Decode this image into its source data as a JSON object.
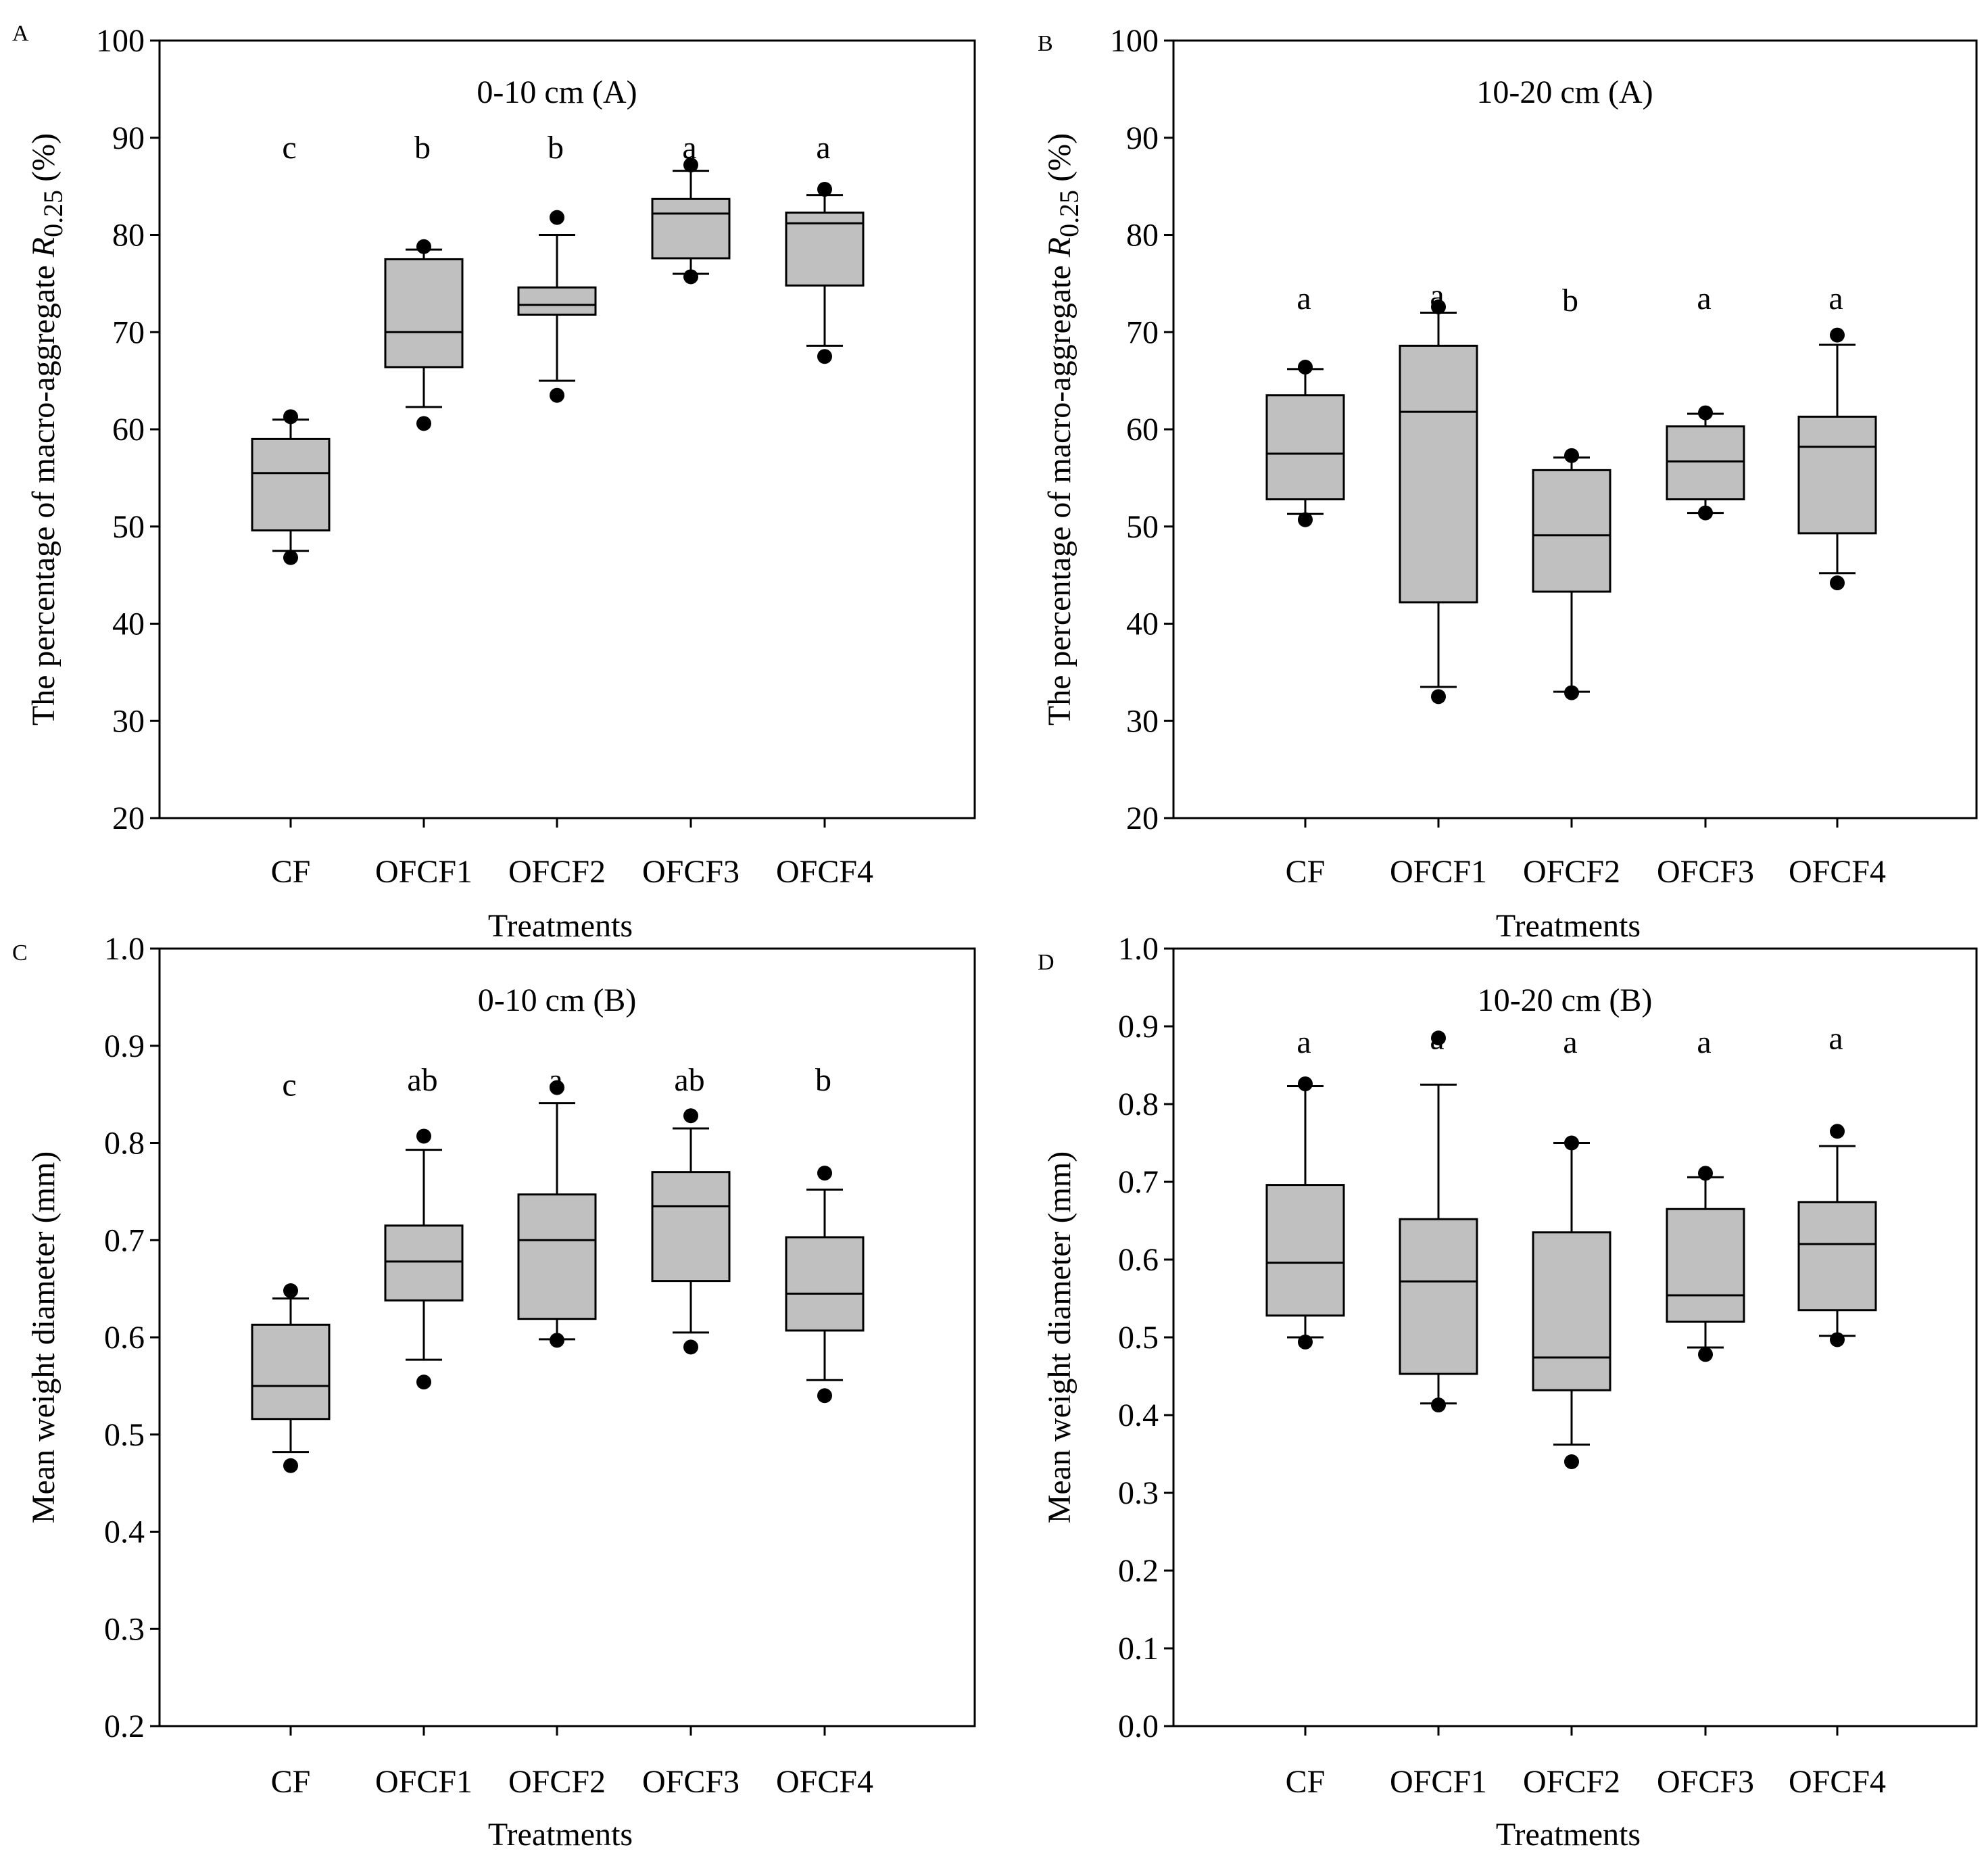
{
  "chart_data": [
    {
      "type": "box",
      "panel": "A",
      "title": "0-10 cm (A)",
      "xlabel": "Treatments",
      "ylabel": "The percentage of macro-aggregate R0.25 (%)",
      "ylabel_parts": {
        "main": "The percentage of macro-aggregate ",
        "italic": "R",
        "sub": "0.25",
        "tail": " (%)"
      },
      "ylim": [
        20,
        100
      ],
      "yticks": [
        "20",
        "30",
        "40",
        "50",
        "60",
        "70",
        "80",
        "90",
        "100"
      ],
      "categories": [
        "CF",
        "OFCF1",
        "OFCF2",
        "OFCF3",
        "OFCF4"
      ],
      "letters": [
        "c",
        "b",
        "b",
        "a",
        "a"
      ],
      "letter_y": [
        89,
        89,
        89,
        89,
        89
      ],
      "boxes": [
        {
          "whisker_low": 47.5,
          "q1": 49.6,
          "median": 55.5,
          "q3": 59.0,
          "whisker_high": 61.0,
          "outliers": [
            46.8,
            61.3
          ]
        },
        {
          "whisker_low": 62.3,
          "q1": 66.4,
          "median": 70.0,
          "q3": 77.5,
          "whisker_high": 78.5,
          "outliers": [
            60.6,
            78.8
          ]
        },
        {
          "whisker_low": 65.0,
          "q1": 71.8,
          "median": 72.8,
          "q3": 74.6,
          "whisker_high": 80.0,
          "outliers": [
            63.5,
            81.8
          ]
        },
        {
          "whisker_low": 76.0,
          "q1": 77.6,
          "median": 82.2,
          "q3": 83.7,
          "whisker_high": 86.6,
          "outliers": [
            75.7,
            87.2
          ]
        },
        {
          "whisker_low": 68.6,
          "q1": 74.8,
          "median": 81.2,
          "q3": 82.3,
          "whisker_high": 84.1,
          "outliers": [
            67.5,
            84.7
          ]
        }
      ]
    },
    {
      "type": "box",
      "panel": "B",
      "title": "10-20 cm (A)",
      "xlabel": "Treatments",
      "ylabel": "The percentage of macro-aggregate R0.25 (%)",
      "ylabel_parts": {
        "main": "The percentage of macro-aggregate ",
        "italic": "R",
        "sub": "0.25",
        "tail": " (%)"
      },
      "ylim": [
        20,
        100
      ],
      "yticks": [
        "20",
        "30",
        "40",
        "50",
        "60",
        "70",
        "80",
        "90",
        "100"
      ],
      "categories": [
        "CF",
        "OFCF1",
        "OFCF2",
        "OFCF3",
        "OFCF4"
      ],
      "letters": [
        "a",
        "a",
        "b",
        "a",
        "a"
      ],
      "letter_y": [
        73.5,
        73.8,
        73.3,
        73.5,
        73.5
      ],
      "boxes": [
        {
          "whisker_low": 51.3,
          "q1": 52.8,
          "median": 57.5,
          "q3": 63.5,
          "whisker_high": 66.2,
          "outliers": [
            50.7,
            66.4
          ]
        },
        {
          "whisker_low": 33.5,
          "q1": 42.2,
          "median": 61.8,
          "q3": 68.6,
          "whisker_high": 72.0,
          "outliers": [
            32.5,
            72.6
          ]
        },
        {
          "whisker_low": 33.0,
          "q1": 43.3,
          "median": 49.1,
          "q3": 55.8,
          "whisker_high": 57.1,
          "outliers": [
            32.9,
            57.3
          ]
        },
        {
          "whisker_low": 51.4,
          "q1": 52.8,
          "median": 56.7,
          "q3": 60.3,
          "whisker_high": 61.6,
          "outliers": [
            51.4,
            61.7
          ]
        },
        {
          "whisker_low": 45.2,
          "q1": 49.3,
          "median": 58.2,
          "q3": 61.3,
          "whisker_high": 68.7,
          "outliers": [
            44.2,
            69.7
          ]
        }
      ]
    },
    {
      "type": "box",
      "panel": "C",
      "title": "0-10 cm (B)",
      "xlabel": "Treatments",
      "ylabel": "Mean weight diameter (mm)",
      "ylim": [
        0.2,
        1.0
      ],
      "yticks": [
        "0.2",
        "0.3",
        "0.4",
        "0.5",
        "0.6",
        "0.7",
        "0.8",
        "0.9",
        "1.0"
      ],
      "categories": [
        "CF",
        "OFCF1",
        "OFCF2",
        "OFCF3",
        "OFCF4"
      ],
      "letters": [
        "c",
        "ab",
        "a",
        "ab",
        "b"
      ],
      "letter_y": [
        0.86,
        0.865,
        0.865,
        0.865,
        0.865
      ],
      "boxes": [
        {
          "whisker_low": 0.482,
          "q1": 0.516,
          "median": 0.55,
          "q3": 0.613,
          "whisker_high": 0.64,
          "outliers": [
            0.468,
            0.648
          ]
        },
        {
          "whisker_low": 0.577,
          "q1": 0.638,
          "median": 0.678,
          "q3": 0.715,
          "whisker_high": 0.793,
          "outliers": [
            0.554,
            0.807
          ]
        },
        {
          "whisker_low": 0.598,
          "q1": 0.619,
          "median": 0.7,
          "q3": 0.747,
          "whisker_high": 0.841,
          "outliers": [
            0.597,
            0.857
          ]
        },
        {
          "whisker_low": 0.605,
          "q1": 0.658,
          "median": 0.735,
          "q3": 0.77,
          "whisker_high": 0.815,
          "outliers": [
            0.59,
            0.828
          ]
        },
        {
          "whisker_low": 0.556,
          "q1": 0.607,
          "median": 0.645,
          "q3": 0.703,
          "whisker_high": 0.752,
          "outliers": [
            0.54,
            0.769
          ]
        }
      ]
    },
    {
      "type": "box",
      "panel": "D",
      "title": "10-20 cm (B)",
      "xlabel": "Treatments",
      "ylabel": "Mean weight diameter (mm)",
      "ylim": [
        0.0,
        1.0
      ],
      "yticks": [
        "0.0",
        "0.1",
        "0.2",
        "0.3",
        "0.4",
        "0.5",
        "0.6",
        "0.7",
        "0.8",
        "0.9",
        "1.0"
      ],
      "categories": [
        "CF",
        "OFCF1",
        "OFCF2",
        "OFCF3",
        "OFCF4"
      ],
      "letters": [
        "a",
        "a",
        "a",
        "a",
        "a"
      ],
      "letter_y": [
        0.88,
        0.885,
        0.88,
        0.88,
        0.885
      ],
      "boxes": [
        {
          "whisker_low": 0.5,
          "q1": 0.528,
          "median": 0.596,
          "q3": 0.696,
          "whisker_high": 0.823,
          "outliers": [
            0.494,
            0.826
          ]
        },
        {
          "whisker_low": 0.415,
          "q1": 0.453,
          "median": 0.572,
          "q3": 0.652,
          "whisker_high": 0.825,
          "outliers": [
            0.413,
            0.885
          ]
        },
        {
          "whisker_low": 0.362,
          "q1": 0.432,
          "median": 0.474,
          "q3": 0.635,
          "whisker_high": 0.75,
          "outliers": [
            0.34,
            0.75
          ]
        },
        {
          "whisker_low": 0.487,
          "q1": 0.52,
          "median": 0.554,
          "q3": 0.665,
          "whisker_high": 0.706,
          "outliers": [
            0.478,
            0.711
          ]
        },
        {
          "whisker_low": 0.502,
          "q1": 0.535,
          "median": 0.62,
          "q3": 0.674,
          "whisker_high": 0.746,
          "outliers": [
            0.497,
            0.765
          ]
        }
      ]
    }
  ],
  "colors": {
    "box_fill": "#c0c0c0",
    "line": "#000000",
    "background": "#ffffff"
  }
}
